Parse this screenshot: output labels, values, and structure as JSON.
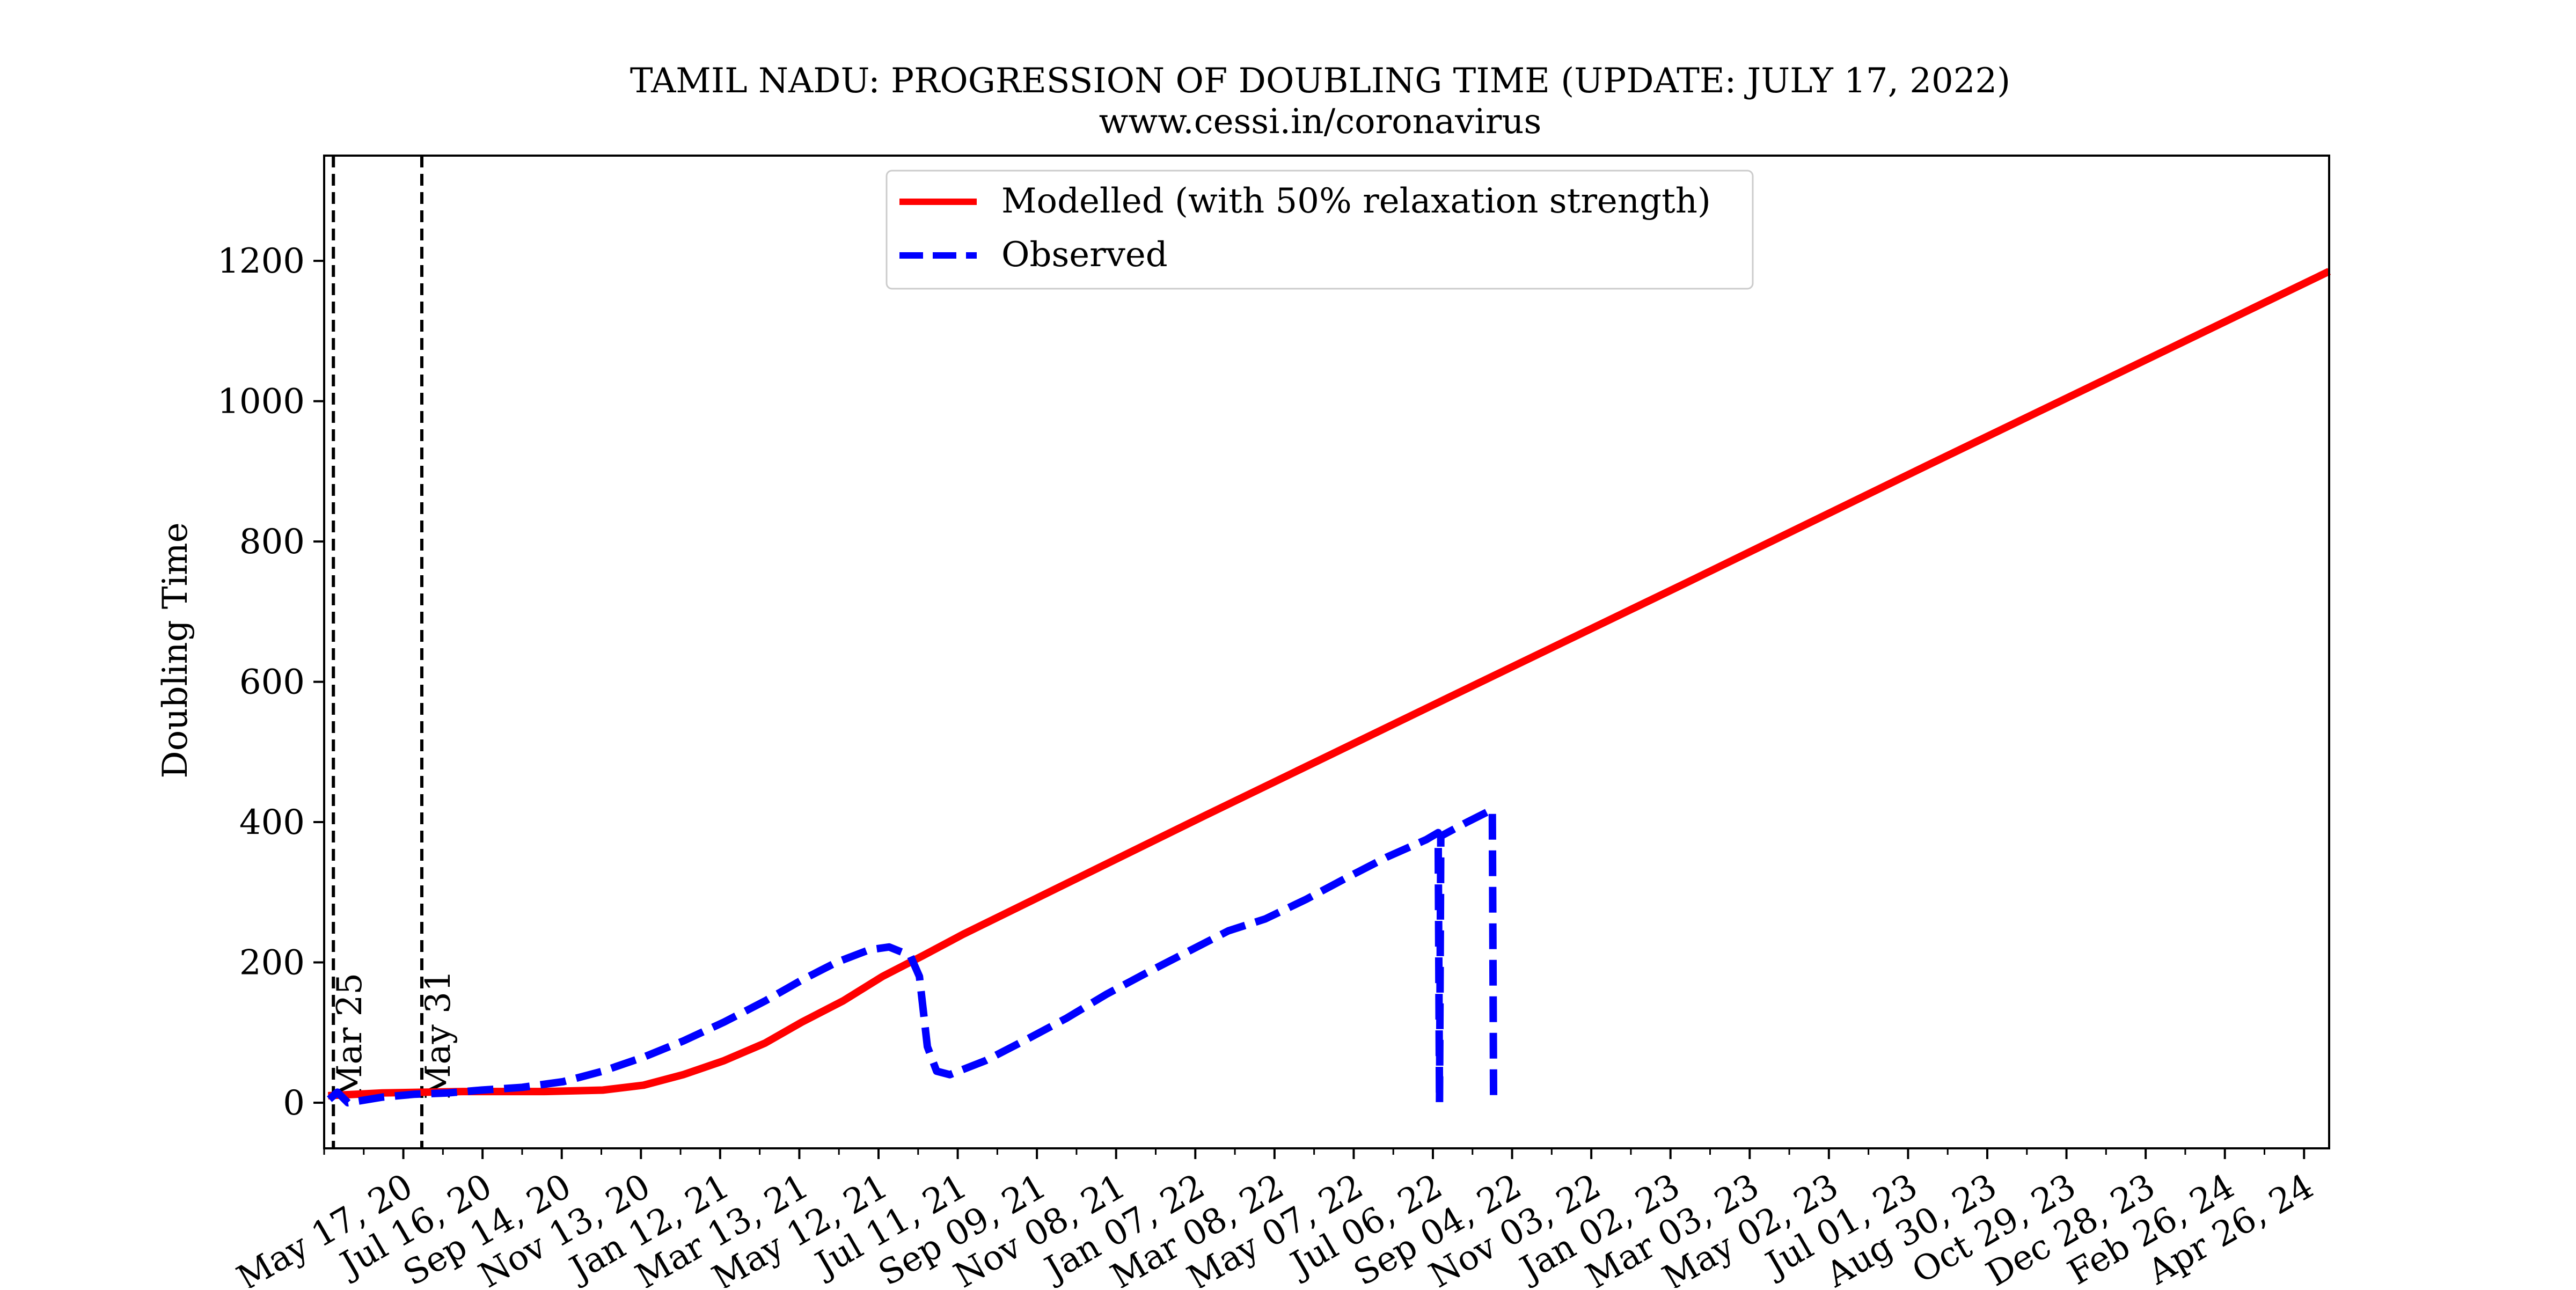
{
  "chart_data": {
    "type": "line",
    "title": "TAMIL NADU: PROGRESSION OF DOUBLING TIME (UPDATE: JULY 17, 2022)",
    "subtitle": "www.cessi.in/coronavirus",
    "xlabel": "",
    "ylabel": "Doubling Time",
    "xlim": [
      "2020-03-18",
      "2024-05-15"
    ],
    "ylim": [
      -65,
      1350
    ],
    "yticks": [
      0,
      200,
      400,
      600,
      800,
      1000,
      1200
    ],
    "xticks": [
      {
        "date": "2020-05-17",
        "label": "May 17, 20"
      },
      {
        "date": "2020-07-16",
        "label": "Jul 16, 20"
      },
      {
        "date": "2020-09-14",
        "label": "Sep 14, 20"
      },
      {
        "date": "2020-11-13",
        "label": "Nov 13, 20"
      },
      {
        "date": "2021-01-12",
        "label": "Jan 12, 21"
      },
      {
        "date": "2021-03-13",
        "label": "Mar 13, 21"
      },
      {
        "date": "2021-05-12",
        "label": "May 12, 21"
      },
      {
        "date": "2021-07-11",
        "label": "Jul 11, 21"
      },
      {
        "date": "2021-09-09",
        "label": "Sep 09, 21"
      },
      {
        "date": "2021-11-08",
        "label": "Nov 08, 21"
      },
      {
        "date": "2022-01-07",
        "label": "Jan 07, 22"
      },
      {
        "date": "2022-03-08",
        "label": "Mar 08, 22"
      },
      {
        "date": "2022-05-07",
        "label": "May 07, 22"
      },
      {
        "date": "2022-07-06",
        "label": "Jul 06, 22"
      },
      {
        "date": "2022-09-04",
        "label": "Sep 04, 22"
      },
      {
        "date": "2022-11-03",
        "label": "Nov 03, 22"
      },
      {
        "date": "2023-01-02",
        "label": "Jan 02, 23"
      },
      {
        "date": "2023-03-03",
        "label": "Mar 03, 23"
      },
      {
        "date": "2023-05-02",
        "label": "May 02, 23"
      },
      {
        "date": "2023-07-01",
        "label": "Jul 01, 23"
      },
      {
        "date": "2023-08-30",
        "label": "Aug 30, 23"
      },
      {
        "date": "2023-10-29",
        "label": "Oct 29, 23"
      },
      {
        "date": "2023-12-28",
        "label": "Dec 28, 23"
      },
      {
        "date": "2024-02-26",
        "label": "Feb 26, 24"
      },
      {
        "date": "2024-04-26",
        "label": "Apr 26, 24"
      }
    ],
    "vlines": [
      {
        "date": "2020-03-25",
        "label": "Mar 25"
      },
      {
        "date": "2020-05-31",
        "label": "May 31"
      }
    ],
    "legend_position": "top-center",
    "grid": false,
    "series": [
      {
        "name": "Modelled (with 50% relaxation strength)",
        "color": "#ff0000",
        "style": "solid",
        "points": [
          [
            "2020-03-21",
            10
          ],
          [
            "2020-05-01",
            14
          ],
          [
            "2020-07-01",
            16
          ],
          [
            "2020-09-01",
            16
          ],
          [
            "2020-10-15",
            18
          ],
          [
            "2020-11-15",
            25
          ],
          [
            "2020-12-15",
            40
          ],
          [
            "2021-01-15",
            60
          ],
          [
            "2021-02-15",
            85
          ],
          [
            "2021-03-15",
            115
          ],
          [
            "2021-04-15",
            145
          ],
          [
            "2021-05-15",
            180
          ],
          [
            "2021-06-15",
            210
          ],
          [
            "2021-07-15",
            240
          ],
          [
            "2021-10-15",
            325
          ],
          [
            "2022-01-15",
            410
          ],
          [
            "2022-04-15",
            492
          ],
          [
            "2022-07-15",
            575
          ],
          [
            "2023-01-15",
            742
          ],
          [
            "2023-07-15",
            908
          ],
          [
            "2024-01-15",
            1075
          ],
          [
            "2024-05-15",
            1185
          ]
        ]
      },
      {
        "name": "Observed",
        "color": "#0000ff",
        "style": "dashed",
        "points": [
          [
            "2020-03-22",
            5
          ],
          [
            "2020-03-28",
            15
          ],
          [
            "2020-04-05",
            0
          ],
          [
            "2020-04-15",
            3
          ],
          [
            "2020-05-01",
            8
          ],
          [
            "2020-05-25",
            12
          ],
          [
            "2020-06-20",
            14
          ],
          [
            "2020-07-15",
            18
          ],
          [
            "2020-08-15",
            22
          ],
          [
            "2020-09-15",
            30
          ],
          [
            "2020-10-15",
            45
          ],
          [
            "2020-11-15",
            65
          ],
          [
            "2020-12-15",
            88
          ],
          [
            "2021-01-15",
            115
          ],
          [
            "2021-02-15",
            145
          ],
          [
            "2021-03-15",
            175
          ],
          [
            "2021-04-10",
            200
          ],
          [
            "2021-05-05",
            218
          ],
          [
            "2021-05-20",
            222
          ],
          [
            "2021-06-05",
            210
          ],
          [
            "2021-06-12",
            180
          ],
          [
            "2021-06-18",
            80
          ],
          [
            "2021-06-25",
            45
          ],
          [
            "2021-07-05",
            40
          ],
          [
            "2021-08-01",
            60
          ],
          [
            "2021-09-01",
            90
          ],
          [
            "2021-10-01",
            120
          ],
          [
            "2021-11-01",
            155
          ],
          [
            "2021-12-01",
            185
          ],
          [
            "2022-01-01",
            215
          ],
          [
            "2022-02-01",
            245
          ],
          [
            "2022-03-01",
            262
          ],
          [
            "2022-04-01",
            290
          ],
          [
            "2022-05-01",
            320
          ],
          [
            "2022-06-01",
            350
          ],
          [
            "2022-07-01",
            375
          ],
          [
            "2022-07-10",
            385
          ],
          [
            "2022-07-11",
            0
          ],
          [
            "2022-07-12",
            380
          ],
          [
            "2022-08-01",
            400
          ],
          [
            "2022-08-20",
            418
          ],
          [
            "2022-08-21",
            0
          ]
        ]
      }
    ]
  }
}
